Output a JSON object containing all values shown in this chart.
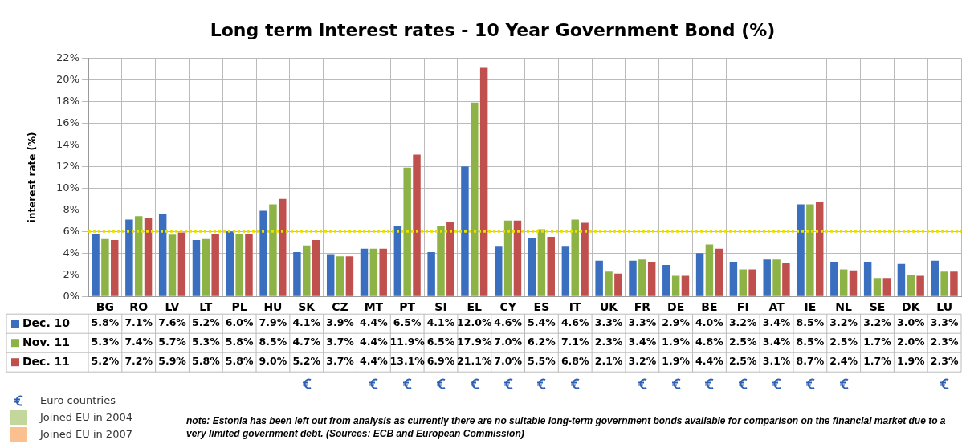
{
  "chart_data": {
    "type": "bar",
    "title": "Long term interest rates - 10 Year Government Bond (%)",
    "ylabel": "interest rate (%)",
    "categories": [
      "BG",
      "RO",
      "LV",
      "LT",
      "PL",
      "HU",
      "SK",
      "CZ",
      "MT",
      "PT",
      "SI",
      "EL",
      "CY",
      "ES",
      "IT",
      "UK",
      "FR",
      "DE",
      "BE",
      "FI",
      "AT",
      "IE",
      "NL",
      "SE",
      "DK",
      "LU"
    ],
    "series": [
      {
        "name": "Dec. 10",
        "color": "#3a6fc0",
        "values": [
          5.8,
          7.1,
          7.6,
          5.2,
          6.0,
          7.9,
          4.1,
          3.9,
          4.4,
          6.5,
          4.1,
          12.0,
          4.6,
          5.4,
          4.6,
          3.3,
          3.3,
          2.9,
          4.0,
          3.2,
          3.4,
          8.5,
          3.2,
          3.2,
          3.0,
          3.3
        ],
        "value_labels": [
          "5.8%",
          "7.1%",
          "7.6%",
          "5.2%",
          "6.0%",
          "7.9%",
          "4.1%",
          "3.9%",
          "4.4%",
          "6.5%",
          "4.1%",
          "12.0%",
          "4.6%",
          "5.4%",
          "4.6%",
          "3.3%",
          "3.3%",
          "2.9%",
          "4.0%",
          "3.2%",
          "3.4%",
          "8.5%",
          "3.2%",
          "3.2%",
          "3.0%",
          "3.3%"
        ]
      },
      {
        "name": "Nov. 11",
        "color": "#8db347",
        "values": [
          5.3,
          7.4,
          5.7,
          5.3,
          5.8,
          8.5,
          4.7,
          3.7,
          4.4,
          11.9,
          6.5,
          17.9,
          7.0,
          6.2,
          7.1,
          2.3,
          3.4,
          1.9,
          4.8,
          2.5,
          3.4,
          8.5,
          2.5,
          1.7,
          2.0,
          2.3
        ],
        "value_labels": [
          "5.3%",
          "7.4%",
          "5.7%",
          "5.3%",
          "5.8%",
          "8.5%",
          "4.7%",
          "3.7%",
          "4.4%",
          "11.9%",
          "6.5%",
          "17.9%",
          "7.0%",
          "6.2%",
          "7.1%",
          "2.3%",
          "3.4%",
          "1.9%",
          "4.8%",
          "2.5%",
          "3.4%",
          "8.5%",
          "2.5%",
          "1.7%",
          "2.0%",
          "2.3%"
        ]
      },
      {
        "name": "Dec. 11",
        "color": "#c0504d",
        "values": [
          5.2,
          7.2,
          5.9,
          5.8,
          5.8,
          9.0,
          5.2,
          3.7,
          4.4,
          13.1,
          6.9,
          21.1,
          7.0,
          5.5,
          6.8,
          2.1,
          3.2,
          1.9,
          4.4,
          2.5,
          3.1,
          8.7,
          2.4,
          1.7,
          1.9,
          2.3
        ],
        "value_labels": [
          "5.2%",
          "7.2%",
          "5.9%",
          "5.8%",
          "5.8%",
          "9.0%",
          "5.2%",
          "3.7%",
          "4.4%",
          "13.1%",
          "6.9%",
          "21.1%",
          "7.0%",
          "5.5%",
          "6.8%",
          "2.1%",
          "3.2%",
          "1.9%",
          "4.4%",
          "2.5%",
          "3.1%",
          "8.7%",
          "2.4%",
          "1.7%",
          "1.9%",
          "2.3%"
        ]
      }
    ],
    "ylim": [
      0,
      22
    ],
    "yticks": [
      {
        "value": 0,
        "label": "0%"
      },
      {
        "value": 2,
        "label": "2%"
      },
      {
        "value": 4,
        "label": "4%"
      },
      {
        "value": 6,
        "label": "6%"
      },
      {
        "value": 8,
        "label": "8%"
      },
      {
        "value": 10,
        "label": "10%"
      },
      {
        "value": 12,
        "label": "12%"
      },
      {
        "value": 14,
        "label": "14%"
      },
      {
        "value": 16,
        "label": "16%"
      },
      {
        "value": 18,
        "label": "18%"
      },
      {
        "value": 20,
        "label": "20%"
      },
      {
        "value": 22,
        "label": "22%"
      }
    ],
    "ref_lines": [
      {
        "axis": "y",
        "value": 6,
        "color": "#e8e000",
        "line_style": "dotted"
      }
    ],
    "grid": true,
    "legend": "bottom left",
    "annotations": [
      "Euro countries",
      "Joined EU in 2004",
      "Joined EU in 2007",
      "note: Estonia has been left out from analysis as currently there are no suitable long-term government bonds available for comparison on the financial market due to a very limited government debt.      (Sources: ECB and European Commission)"
    ]
  }
}
